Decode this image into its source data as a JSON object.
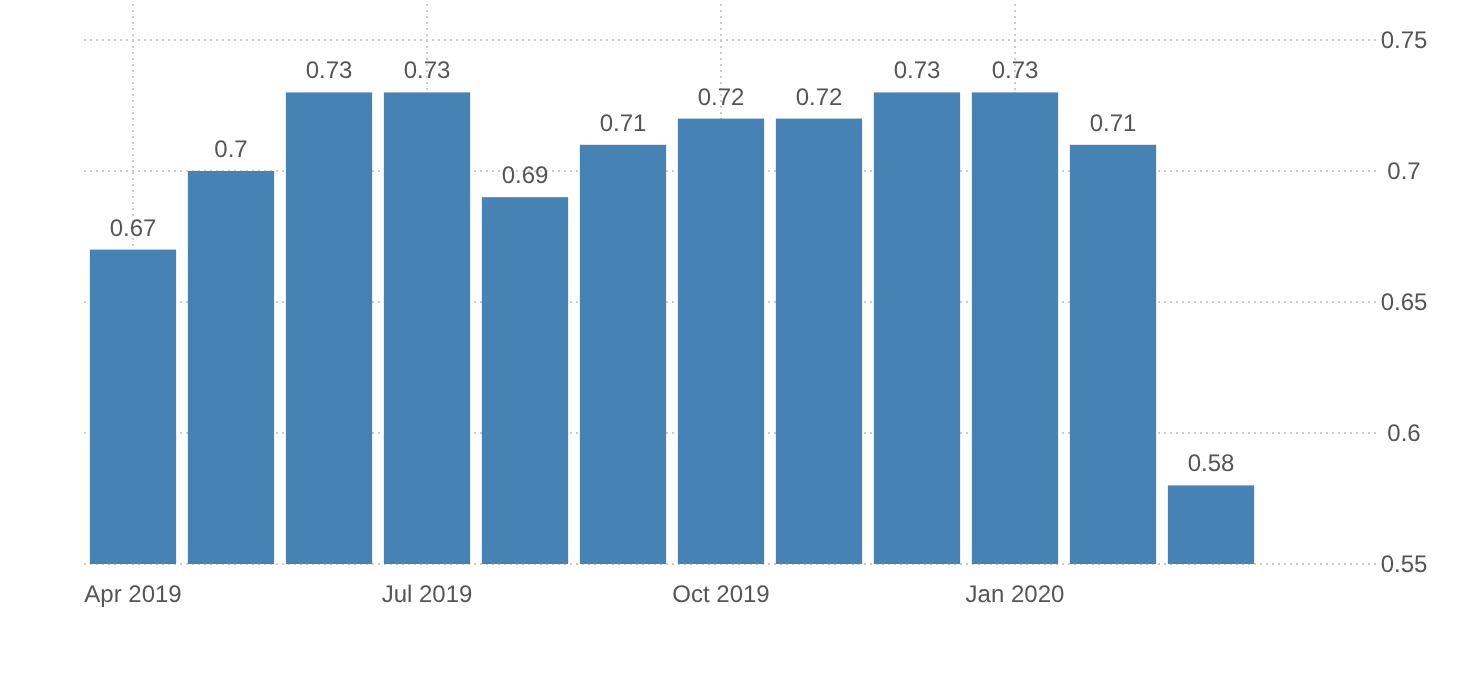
{
  "chart_data": {
    "type": "bar",
    "categories": [
      "Apr 2019",
      null,
      null,
      "Jul 2019",
      null,
      null,
      "Oct 2019",
      null,
      null,
      "Jan 2020",
      null,
      null
    ],
    "values": [
      0.67,
      0.7,
      0.73,
      0.73,
      0.69,
      0.71,
      0.72,
      0.72,
      0.73,
      0.73,
      0.71,
      0.58
    ],
    "color": "#4682b4",
    "ylim": [
      0.55,
      0.75
    ],
    "yticks": [
      0.55,
      0.6,
      0.65,
      0.7,
      0.75
    ],
    "grid": true,
    "data_labels": true
  }
}
